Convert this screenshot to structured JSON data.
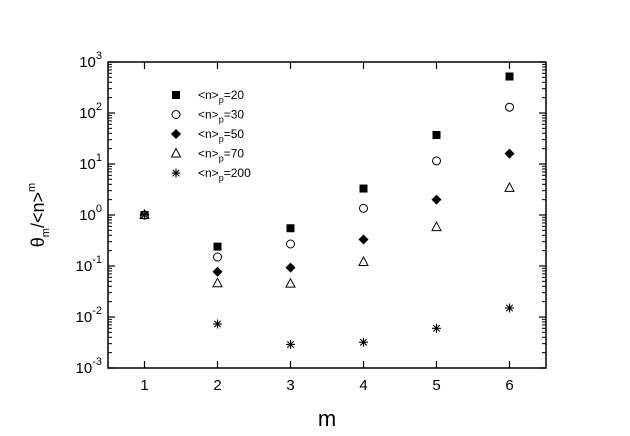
{
  "chart_data": {
    "type": "scatter",
    "title": "",
    "xlabel": "m",
    "ylabel": "θm/<n>m",
    "ylabel_parts": {
      "theta": "θ",
      "sub_m": "m",
      "middle": "/<n>",
      "sup_m": "m"
    },
    "xlim": [
      0.5,
      6.5
    ],
    "ylim": [
      0.001,
      1000
    ],
    "yscale": "log",
    "xticks": [
      1,
      2,
      3,
      4,
      5,
      6
    ],
    "yticks": [
      {
        "value": 0.001,
        "base": "10",
        "exp": "-3"
      },
      {
        "value": 0.01,
        "base": "10",
        "exp": "-2"
      },
      {
        "value": 0.1,
        "base": "10",
        "exp": "-1"
      },
      {
        "value": 1,
        "base": "10",
        "exp": "0"
      },
      {
        "value": 10,
        "base": "10",
        "exp": "1"
      },
      {
        "value": 100,
        "base": "10",
        "exp": "2"
      },
      {
        "value": 1000,
        "base": "10",
        "exp": "3"
      }
    ],
    "grid": false,
    "legend_position": "top-left",
    "series": [
      {
        "name": "<n>p=20",
        "label_prefix": "<n>",
        "label_sub": "p",
        "label_suffix": "=20",
        "marker": "filled-square",
        "x": [
          1,
          2,
          3,
          4,
          5,
          6
        ],
        "y": [
          1.0,
          0.24,
          0.55,
          3.3,
          37,
          520
        ]
      },
      {
        "name": "<n>p=30",
        "label_prefix": "<n>",
        "label_sub": "p",
        "label_suffix": "=30",
        "marker": "open-circle",
        "x": [
          1,
          2,
          3,
          4,
          5,
          6
        ],
        "y": [
          1.0,
          0.15,
          0.27,
          1.35,
          11.5,
          130
        ]
      },
      {
        "name": "<n>p=50",
        "label_prefix": "<n>",
        "label_sub": "p",
        "label_suffix": "=50",
        "marker": "filled-diamond",
        "x": [
          1,
          2,
          3,
          4,
          5,
          6
        ],
        "y": [
          1.0,
          0.077,
          0.093,
          0.33,
          2.0,
          16
        ]
      },
      {
        "name": "<n>p=70",
        "label_prefix": "<n>",
        "label_sub": "p",
        "label_suffix": "=70",
        "marker": "open-triangle",
        "x": [
          1,
          2,
          3,
          4,
          5,
          6
        ],
        "y": [
          1.0,
          0.046,
          0.045,
          0.12,
          0.58,
          3.4
        ]
      },
      {
        "name": "<n>p=200",
        "label_prefix": "<n>",
        "label_sub": "p",
        "label_suffix": "=200",
        "marker": "asterisk",
        "x": [
          1,
          2,
          3,
          4,
          5,
          6
        ],
        "y": [
          1.0,
          0.0073,
          0.0029,
          0.0032,
          0.006,
          0.015
        ]
      }
    ]
  }
}
